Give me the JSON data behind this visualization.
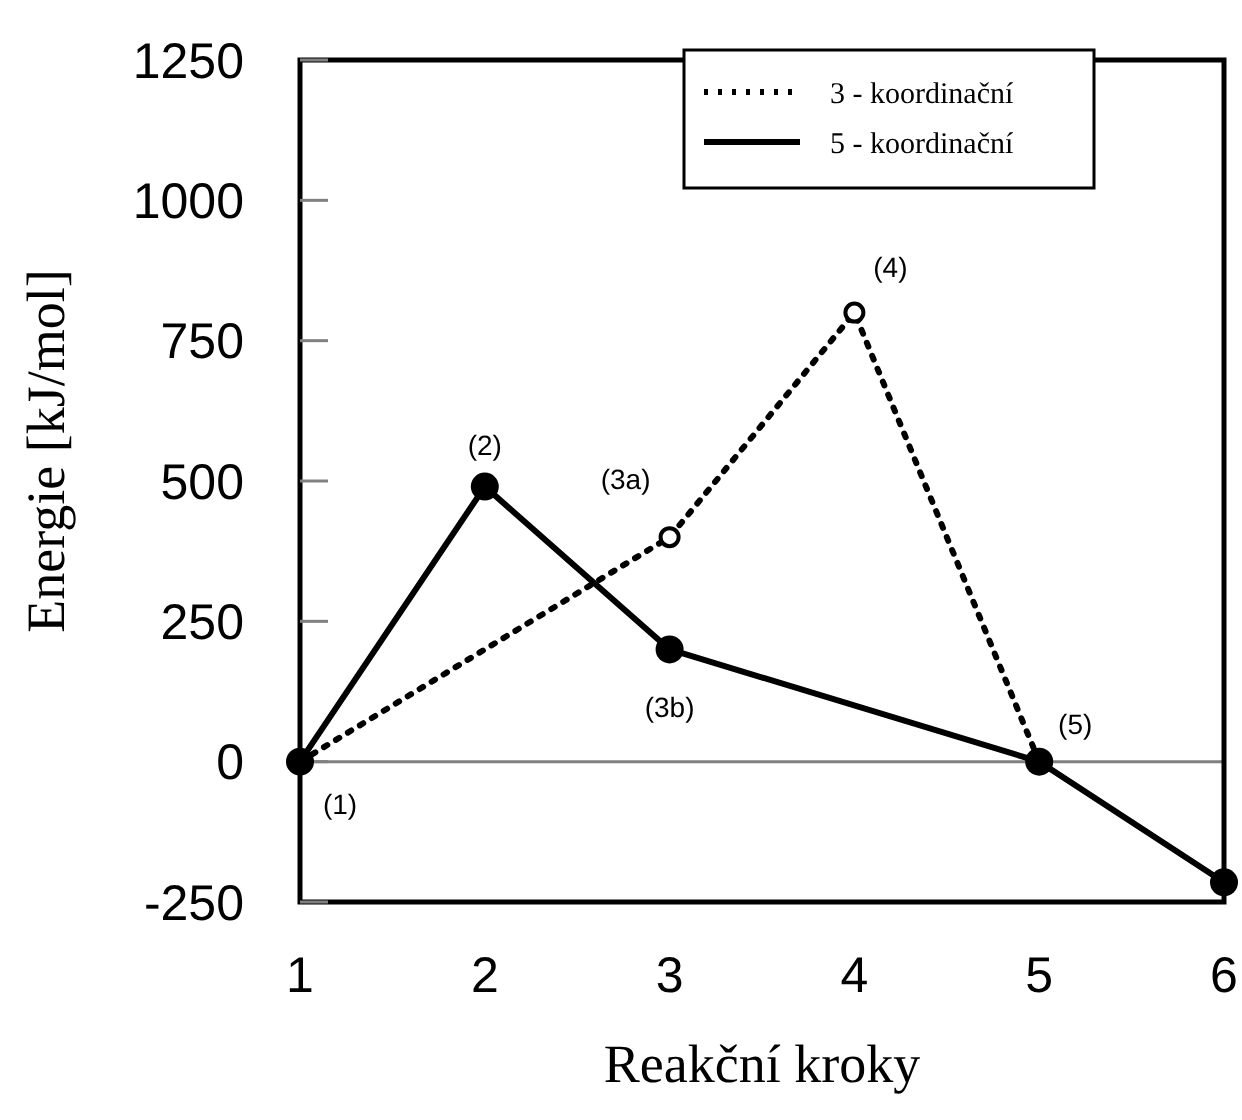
{
  "chart_data": {
    "type": "line",
    "xlabel": "Reakční kroky",
    "ylabel": "Energie [kJ/mol]",
    "xlim": [
      1,
      6
    ],
    "xticks": [
      1,
      2,
      3,
      4,
      5,
      6
    ],
    "ylim": [
      -250,
      1250
    ],
    "yticks": [
      -250,
      0,
      250,
      500,
      750,
      1000,
      1250
    ],
    "grid": false,
    "legend": "top right",
    "marker": "circle",
    "series": [
      {
        "name": "3 - koordinační",
        "color": "#000000",
        "line_style": "dotted",
        "x": [
          1,
          3,
          4,
          5
        ],
        "values": [
          0,
          400,
          800,
          0
        ]
      },
      {
        "name": "5 - koordinační",
        "color": "#000000",
        "line_style": "solid",
        "x": [
          1,
          2,
          3,
          5,
          6
        ],
        "values": [
          0,
          490,
          200,
          0,
          -215
        ]
      }
    ],
    "ref_lines": [
      {
        "axis": "y",
        "value": 0,
        "color": "#808080"
      }
    ],
    "annotations": [
      {
        "text": "(1)",
        "x": 1,
        "y": 0
      },
      {
        "text": "(2)",
        "x": 2,
        "y": 490
      },
      {
        "text": "(3a)",
        "x": 3,
        "y": 400
      },
      {
        "text": "(3b)",
        "x": 3,
        "y": 200
      },
      {
        "text": "(4)",
        "x": 4,
        "y": 800
      },
      {
        "text": "(5)",
        "x": 5,
        "y": 0
      }
    ]
  }
}
